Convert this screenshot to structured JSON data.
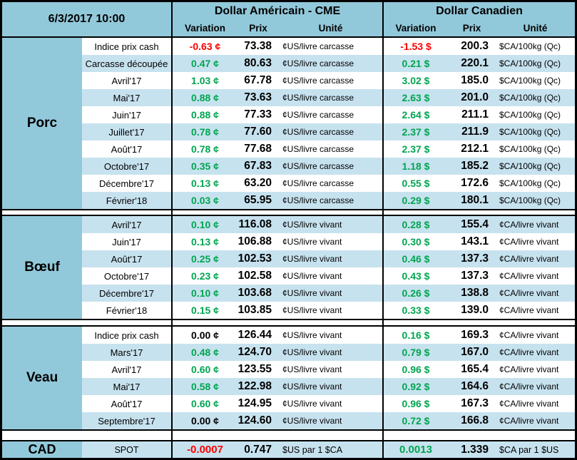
{
  "meta": {
    "datetime": "6/3/2017 10:00"
  },
  "groups": {
    "us_title": "Dollar Américain - CME",
    "ca_title": "Dollar Canadien"
  },
  "columns": {
    "variation": "Variation",
    "prix": "Prix",
    "unite": "Unité"
  },
  "colors": {
    "positive_green": "#00a550",
    "negative_red": "#fe0000",
    "neutral_black": "#000000",
    "header_blue": "#92c9da",
    "stripe_blue": "#c7e2ef"
  },
  "sections": [
    {
      "name": "Porc",
      "zebra_blue_on": "odd",
      "rows": [
        {
          "label": "Indice prix cash",
          "us": {
            "variation": "-0.63 ¢",
            "trend": "down",
            "prix": "73.38",
            "unit": "¢US/livre carcasse"
          },
          "ca": {
            "variation": "-1.53 $",
            "trend": "down",
            "prix": "200.3",
            "unit": "$CA/100kg (Qc)"
          }
        },
        {
          "label": "Carcasse découpée",
          "us": {
            "variation": "0.47 ¢",
            "trend": "up",
            "prix": "80.63",
            "unit": "¢US/livre carcasse"
          },
          "ca": {
            "variation": "0.21 $",
            "trend": "up",
            "prix": "220.1",
            "unit": "$CA/100kg (Qc)"
          }
        },
        {
          "label": "Avril'17",
          "us": {
            "variation": "1.03 ¢",
            "trend": "up",
            "prix": "67.78",
            "unit": "¢US/livre carcasse"
          },
          "ca": {
            "variation": "3.02 $",
            "trend": "up",
            "prix": "185.0",
            "unit": "$CA/100kg (Qc)"
          }
        },
        {
          "label": "Mai'17",
          "us": {
            "variation": "0.88 ¢",
            "trend": "up",
            "prix": "73.63",
            "unit": "¢US/livre carcasse"
          },
          "ca": {
            "variation": "2.63 $",
            "trend": "up",
            "prix": "201.0",
            "unit": "$CA/100kg (Qc)"
          }
        },
        {
          "label": "Juin'17",
          "us": {
            "variation": "0.88 ¢",
            "trend": "up",
            "prix": "77.33",
            "unit": "¢US/livre carcasse"
          },
          "ca": {
            "variation": "2.64 $",
            "trend": "up",
            "prix": "211.1",
            "unit": "$CA/100kg (Qc)"
          }
        },
        {
          "label": "Juillet'17",
          "us": {
            "variation": "0.78 ¢",
            "trend": "up",
            "prix": "77.60",
            "unit": "¢US/livre carcasse"
          },
          "ca": {
            "variation": "2.37 $",
            "trend": "up",
            "prix": "211.9",
            "unit": "$CA/100kg (Qc)"
          }
        },
        {
          "label": "Août'17",
          "us": {
            "variation": "0.78 ¢",
            "trend": "up",
            "prix": "77.68",
            "unit": "¢US/livre carcasse"
          },
          "ca": {
            "variation": "2.37 $",
            "trend": "up",
            "prix": "212.1",
            "unit": "$CA/100kg (Qc)"
          }
        },
        {
          "label": "Octobre'17",
          "us": {
            "variation": "0.35 ¢",
            "trend": "up",
            "prix": "67.83",
            "unit": "¢US/livre carcasse"
          },
          "ca": {
            "variation": "1.18 $",
            "trend": "up",
            "prix": "185.2",
            "unit": "$CA/100kg (Qc)"
          }
        },
        {
          "label": "Décembre'17",
          "us": {
            "variation": "0.13 ¢",
            "trend": "up",
            "prix": "63.20",
            "unit": "¢US/livre carcasse"
          },
          "ca": {
            "variation": "0.55 $",
            "trend": "up",
            "prix": "172.6",
            "unit": "$CA/100kg (Qc)"
          }
        },
        {
          "label": "Février'18",
          "us": {
            "variation": "0.03 ¢",
            "trend": "up",
            "prix": "65.95",
            "unit": "¢US/livre carcasse"
          },
          "ca": {
            "variation": "0.29 $",
            "trend": "up",
            "prix": "180.1",
            "unit": "$CA/100kg (Qc)"
          }
        }
      ]
    },
    {
      "name": "Bœuf",
      "zebra_blue_on": "even",
      "rows": [
        {
          "label": "Avril'17",
          "us": {
            "variation": "0.10 ¢",
            "trend": "up",
            "prix": "116.08",
            "unit": "¢US/livre vivant"
          },
          "ca": {
            "variation": "0.28 $",
            "trend": "up",
            "prix": "155.4",
            "unit": "¢CA/livre vivant"
          }
        },
        {
          "label": "Juin'17",
          "us": {
            "variation": "0.13 ¢",
            "trend": "up",
            "prix": "106.88",
            "unit": "¢US/livre vivant"
          },
          "ca": {
            "variation": "0.30 $",
            "trend": "up",
            "prix": "143.1",
            "unit": "¢CA/livre vivant"
          }
        },
        {
          "label": "Août'17",
          "us": {
            "variation": "0.25 ¢",
            "trend": "up",
            "prix": "102.53",
            "unit": "¢US/livre vivant"
          },
          "ca": {
            "variation": "0.46 $",
            "trend": "up",
            "prix": "137.3",
            "unit": "¢CA/livre vivant"
          }
        },
        {
          "label": "Octobre'17",
          "us": {
            "variation": "0.23 ¢",
            "trend": "up",
            "prix": "102.58",
            "unit": "¢US/livre vivant"
          },
          "ca": {
            "variation": "0.43 $",
            "trend": "up",
            "prix": "137.3",
            "unit": "¢CA/livre vivant"
          }
        },
        {
          "label": "Décembre'17",
          "us": {
            "variation": "0.10 ¢",
            "trend": "up",
            "prix": "103.68",
            "unit": "¢US/livre vivant"
          },
          "ca": {
            "variation": "0.26 $",
            "trend": "up",
            "prix": "138.8",
            "unit": "¢CA/livre vivant"
          }
        },
        {
          "label": "Février'18",
          "us": {
            "variation": "0.15 ¢",
            "trend": "up",
            "prix": "103.85",
            "unit": "¢US/livre vivant"
          },
          "ca": {
            "variation": "0.33 $",
            "trend": "up",
            "prix": "139.0",
            "unit": "¢CA/livre vivant"
          }
        }
      ]
    },
    {
      "name": "Veau",
      "zebra_blue_on": "odd",
      "rows": [
        {
          "label": "Indice prix cash",
          "us": {
            "variation": "0.00 ¢",
            "trend": "flat",
            "prix": "126.44",
            "unit": "¢US/livre vivant"
          },
          "ca": {
            "variation": "0.16 $",
            "trend": "up",
            "prix": "169.3",
            "unit": "¢CA/livre vivant"
          }
        },
        {
          "label": "Mars'17",
          "us": {
            "variation": "0.48 ¢",
            "trend": "up",
            "prix": "124.70",
            "unit": "¢US/livre vivant"
          },
          "ca": {
            "variation": "0.79 $",
            "trend": "up",
            "prix": "167.0",
            "unit": "¢CA/livre vivant"
          }
        },
        {
          "label": "Avril'17",
          "us": {
            "variation": "0.60 ¢",
            "trend": "up",
            "prix": "123.55",
            "unit": "¢US/livre vivant"
          },
          "ca": {
            "variation": "0.96 $",
            "trend": "up",
            "prix": "165.4",
            "unit": "¢CA/livre vivant"
          }
        },
        {
          "label": "Mai'17",
          "us": {
            "variation": "0.58 ¢",
            "trend": "up",
            "prix": "122.98",
            "unit": "¢US/livre vivant"
          },
          "ca": {
            "variation": "0.92 $",
            "trend": "up",
            "prix": "164.6",
            "unit": "¢CA/livre vivant"
          }
        },
        {
          "label": "Août'17",
          "us": {
            "variation": "0.60 ¢",
            "trend": "up",
            "prix": "124.95",
            "unit": "¢US/livre vivant"
          },
          "ca": {
            "variation": "0.96 $",
            "trend": "up",
            "prix": "167.3",
            "unit": "¢CA/livre vivant"
          }
        },
        {
          "label": "Septembre'17",
          "us": {
            "variation": "0.00 ¢",
            "trend": "flat",
            "prix": "124.60",
            "unit": "¢US/livre vivant"
          },
          "ca": {
            "variation": "0.72 $",
            "trend": "up",
            "prix": "166.8",
            "unit": "¢CA/livre vivant"
          }
        }
      ]
    }
  ],
  "cad": {
    "name": "CAD",
    "label": "SPOT",
    "us": {
      "variation": "-0.0007",
      "trend": "down",
      "prix": "0.747",
      "unit": "$US par 1 $CA"
    },
    "ca": {
      "variation": "0.0013",
      "trend": "up",
      "prix": "1.339",
      "unit": "$CA par 1 $US"
    }
  }
}
